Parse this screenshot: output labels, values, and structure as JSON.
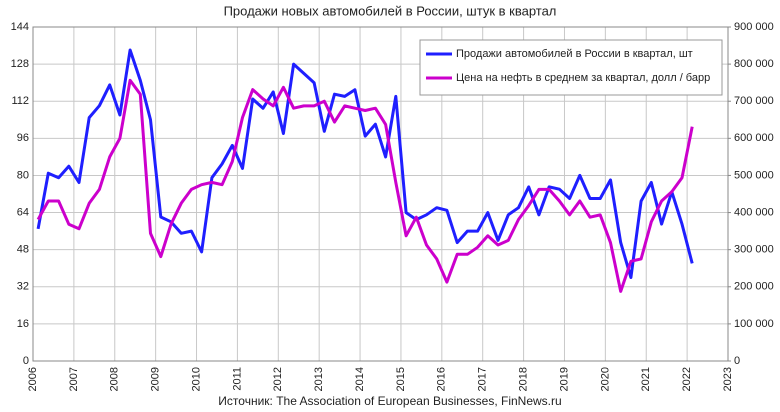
{
  "chart_data": {
    "type": "line",
    "title": "Продажи новых автомобилей в России, штук в квартал",
    "source": "Источник: The Association of European Businesses, FinNews.ru",
    "x": [
      2006.125,
      2006.375,
      2006.625,
      2006.875,
      2007.125,
      2007.375,
      2007.625,
      2007.875,
      2008.125,
      2008.375,
      2008.625,
      2008.875,
      2009.125,
      2009.375,
      2009.625,
      2009.875,
      2010.125,
      2010.375,
      2010.625,
      2010.875,
      2011.125,
      2011.375,
      2011.625,
      2011.875,
      2012.125,
      2012.375,
      2012.625,
      2012.875,
      2013.125,
      2013.375,
      2013.625,
      2013.875,
      2014.125,
      2014.375,
      2014.625,
      2014.875,
      2015.125,
      2015.375,
      2015.625,
      2015.875,
      2016.125,
      2016.375,
      2016.625,
      2016.875,
      2017.125,
      2017.375,
      2017.625,
      2017.875,
      2018.125,
      2018.375,
      2018.625,
      2018.875,
      2019.125,
      2019.375,
      2019.625,
      2019.875,
      2020.125,
      2020.375,
      2020.625,
      2020.875,
      2021.125,
      2021.375,
      2021.625,
      2021.875,
      2022.125
    ],
    "series": [
      {
        "name": "Продажи автомобилей в России в квартал, шт",
        "color": "#1f1fff",
        "axis": "y2",
        "values": [
          356000,
          506000,
          494000,
          525000,
          481000,
          656000,
          688000,
          744000,
          663000,
          838000,
          756000,
          650000,
          388000,
          375000,
          344000,
          350000,
          294000,
          494000,
          531000,
          581000,
          519000,
          706000,
          681000,
          725000,
          613000,
          800000,
          775000,
          750000,
          619000,
          719000,
          713000,
          731000,
          606000,
          638000,
          550000,
          713000,
          400000,
          381000,
          394000,
          413000,
          406000,
          319000,
          350000,
          350000,
          400000,
          325000,
          394000,
          413000,
          469000,
          394000,
          469000,
          463000,
          438000,
          500000,
          438000,
          438000,
          488000,
          319000,
          225000,
          431000,
          481000,
          369000,
          456000,
          369000,
          263000
        ]
      },
      {
        "name": "Цена на нефть в среднем за квартал, долл / барр",
        "color": "#cc00cc",
        "values": [
          61,
          69,
          69,
          59,
          57,
          68,
          74,
          88,
          96,
          121,
          115,
          55,
          45,
          59,
          68,
          74,
          76,
          77,
          76,
          86,
          105,
          117,
          113,
          110,
          118,
          109,
          110,
          110,
          112,
          103,
          110,
          109,
          108,
          109,
          102,
          77,
          54,
          62,
          50,
          44,
          34,
          46,
          46,
          49,
          54,
          50,
          52,
          61,
          67,
          74,
          74,
          69,
          63,
          69,
          62,
          63,
          51,
          30,
          43,
          44,
          60,
          69,
          73,
          79,
          101
        ]
      }
    ],
    "xlim": [
      2006,
      2023
    ],
    "xticks": [
      2006,
      2007,
      2008,
      2009,
      2010,
      2011,
      2012,
      2013,
      2014,
      2015,
      2016,
      2017,
      2018,
      2019,
      2020,
      2021,
      2022,
      2023
    ],
    "ylim": [
      0,
      144
    ],
    "yticks": [
      0,
      16,
      32,
      48,
      64,
      80,
      96,
      112,
      128,
      144
    ],
    "y2lim": [
      0,
      900000
    ],
    "y2ticks": [
      0,
      {
        "value": 100000,
        "label": "100 000"
      },
      {
        "value": 200000,
        "label": "200 000"
      },
      {
        "value": 300000,
        "label": "300 000"
      },
      {
        "value": 400000,
        "label": "400 000"
      },
      {
        "value": 500000,
        "label": "500 000"
      },
      {
        "value": 600000,
        "label": "600 000"
      },
      {
        "value": 700000,
        "label": "700 000"
      },
      {
        "value": 800000,
        "label": "800 000"
      },
      {
        "value": 900000,
        "label": "900 000"
      }
    ],
    "grid": true,
    "legend": "top-right"
  }
}
